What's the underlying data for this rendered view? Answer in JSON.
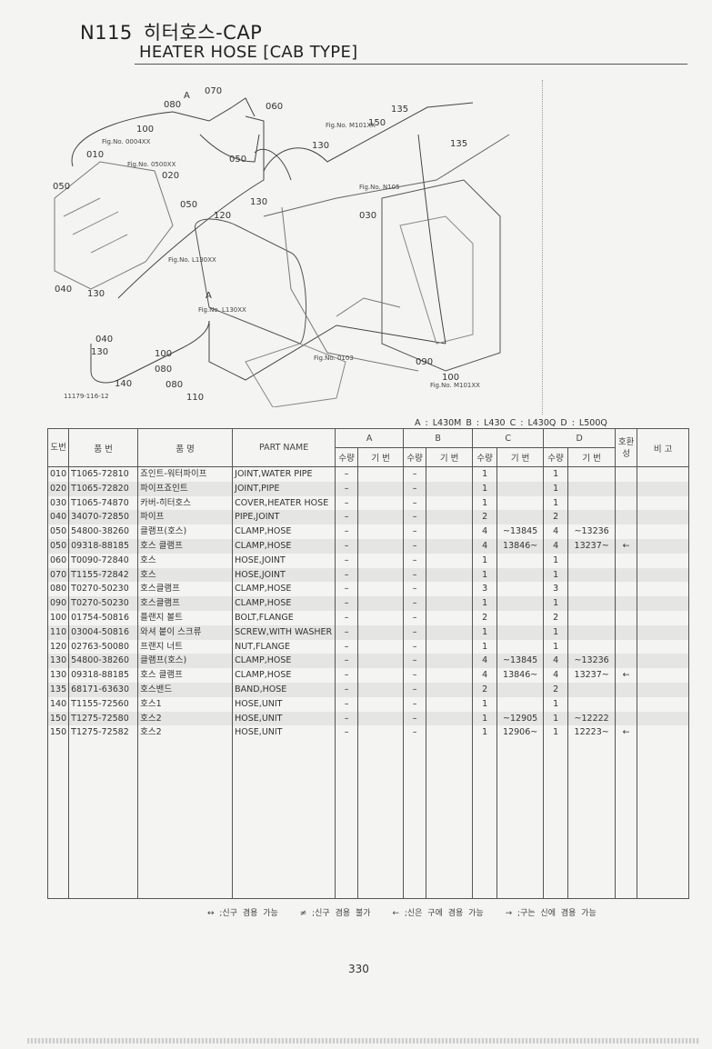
{
  "header": {
    "code": "N115",
    "title_ko": "히터호스-CAP",
    "title_en": "HEATER HOSE [CAB TYPE]"
  },
  "diagram": {
    "callouts": [
      "080",
      "A",
      "070",
      "060",
      "100",
      "010",
      "050",
      "050",
      "020",
      "050",
      "150",
      "135",
      "135",
      "130",
      "130",
      "030",
      "120",
      "A",
      "040",
      "130",
      "040",
      "130",
      "140",
      "100",
      "080",
      "080",
      "110",
      "090",
      "100"
    ],
    "fig_refs": [
      "Fig.No. 0004XX",
      "Fig.No. 0500XX",
      "Fig.No. M101XX",
      "Fig.No. N105",
      "Fig.No. L130XX",
      "Fig.No. L130XX",
      "Fig.No. 0103",
      "Fig.No. M101XX"
    ],
    "drawing_no": "11179-116-12"
  },
  "models_legend": "A : L430M   B : L430   C : L430Q   D : L500Q",
  "table": {
    "headers": {
      "ref": "도번",
      "part_no": "품 번",
      "name_ko": "품 명",
      "part_name": "PART NAME",
      "groups": [
        "A",
        "B",
        "C",
        "D"
      ],
      "qty": "수량",
      "serial": "기 번",
      "interchange": "호환성",
      "remarks": "비 고"
    },
    "rows": [
      {
        "ref": "010",
        "part_no": "T1065-72810",
        "name_ko": "죠인트-워터파이프",
        "part_name": "JOINT,WATER PIPE",
        "a_qty": "–",
        "a_sn": "",
        "b_qty": "–",
        "b_sn": "",
        "c_qty": "1",
        "c_sn": "",
        "d_qty": "1",
        "d_sn": "",
        "ic": "",
        "shade": false
      },
      {
        "ref": "020",
        "part_no": "T1065-72820",
        "name_ko": "파이프죠인트",
        "part_name": "JOINT,PIPE",
        "a_qty": "–",
        "a_sn": "",
        "b_qty": "–",
        "b_sn": "",
        "c_qty": "1",
        "c_sn": "",
        "d_qty": "1",
        "d_sn": "",
        "ic": "",
        "shade": true
      },
      {
        "ref": "030",
        "part_no": "T1065-74870",
        "name_ko": "카버-히터호스",
        "part_name": "COVER,HEATER HOSE",
        "a_qty": "–",
        "a_sn": "",
        "b_qty": "–",
        "b_sn": "",
        "c_qty": "1",
        "c_sn": "",
        "d_qty": "1",
        "d_sn": "",
        "ic": "",
        "shade": false
      },
      {
        "ref": "040",
        "part_no": "34070-72850",
        "name_ko": "파이프",
        "part_name": "PIPE,JOINT",
        "a_qty": "–",
        "a_sn": "",
        "b_qty": "–",
        "b_sn": "",
        "c_qty": "2",
        "c_sn": "",
        "d_qty": "2",
        "d_sn": "",
        "ic": "",
        "shade": true
      },
      {
        "ref": "050",
        "part_no": "54800-38260",
        "name_ko": "클램프(호스)",
        "part_name": "CLAMP,HOSE",
        "a_qty": "–",
        "a_sn": "",
        "b_qty": "–",
        "b_sn": "",
        "c_qty": "4",
        "c_sn": "~13845",
        "d_qty": "4",
        "d_sn": "~13236",
        "ic": "",
        "shade": false
      },
      {
        "ref": "050",
        "part_no": "09318-88185",
        "name_ko": "호스 클램프",
        "part_name": "CLAMP,HOSE",
        "a_qty": "–",
        "a_sn": "",
        "b_qty": "–",
        "b_sn": "",
        "c_qty": "4",
        "c_sn": "13846~",
        "d_qty": "4",
        "d_sn": "13237~",
        "ic": "←",
        "shade": true
      },
      {
        "ref": "060",
        "part_no": "T0090-72840",
        "name_ko": "호스",
        "part_name": "HOSE,JOINT",
        "a_qty": "–",
        "a_sn": "",
        "b_qty": "–",
        "b_sn": "",
        "c_qty": "1",
        "c_sn": "",
        "d_qty": "1",
        "d_sn": "",
        "ic": "",
        "shade": false
      },
      {
        "ref": "070",
        "part_no": "T1155-72842",
        "name_ko": "호스",
        "part_name": "HOSE,JOINT",
        "a_qty": "–",
        "a_sn": "",
        "b_qty": "–",
        "b_sn": "",
        "c_qty": "1",
        "c_sn": "",
        "d_qty": "1",
        "d_sn": "",
        "ic": "",
        "shade": true
      },
      {
        "ref": "080",
        "part_no": "T0270-50230",
        "name_ko": "호스클램프",
        "part_name": "CLAMP,HOSE",
        "a_qty": "–",
        "a_sn": "",
        "b_qty": "–",
        "b_sn": "",
        "c_qty": "3",
        "c_sn": "",
        "d_qty": "3",
        "d_sn": "",
        "ic": "",
        "shade": false
      },
      {
        "ref": "090",
        "part_no": "T0270-50230",
        "name_ko": "호스클램프",
        "part_name": "CLAMP,HOSE",
        "a_qty": "–",
        "a_sn": "",
        "b_qty": "–",
        "b_sn": "",
        "c_qty": "1",
        "c_sn": "",
        "d_qty": "1",
        "d_sn": "",
        "ic": "",
        "shade": true
      },
      {
        "ref": "100",
        "part_no": "01754-50816",
        "name_ko": "플랜지 볼트",
        "part_name": "BOLT,FLANGE",
        "a_qty": "–",
        "a_sn": "",
        "b_qty": "–",
        "b_sn": "",
        "c_qty": "2",
        "c_sn": "",
        "d_qty": "2",
        "d_sn": "",
        "ic": "",
        "shade": false
      },
      {
        "ref": "110",
        "part_no": "03004-50816",
        "name_ko": "와셔 붙이 스크류",
        "part_name": "SCREW,WITH WASHER",
        "a_qty": "–",
        "a_sn": "",
        "b_qty": "–",
        "b_sn": "",
        "c_qty": "1",
        "c_sn": "",
        "d_qty": "1",
        "d_sn": "",
        "ic": "",
        "shade": true
      },
      {
        "ref": "120",
        "part_no": "02763-50080",
        "name_ko": "프랜지 너트",
        "part_name": "NUT,FLANGE",
        "a_qty": "–",
        "a_sn": "",
        "b_qty": "–",
        "b_sn": "",
        "c_qty": "1",
        "c_sn": "",
        "d_qty": "1",
        "d_sn": "",
        "ic": "",
        "shade": false
      },
      {
        "ref": "130",
        "part_no": "54800-38260",
        "name_ko": "클램프(호스)",
        "part_name": "CLAMP,HOSE",
        "a_qty": "–",
        "a_sn": "",
        "b_qty": "–",
        "b_sn": "",
        "c_qty": "4",
        "c_sn": "~13845",
        "d_qty": "4",
        "d_sn": "~13236",
        "ic": "",
        "shade": true
      },
      {
        "ref": "130",
        "part_no": "09318-88185",
        "name_ko": "호스 클램프",
        "part_name": "CLAMP,HOSE",
        "a_qty": "–",
        "a_sn": "",
        "b_qty": "–",
        "b_sn": "",
        "c_qty": "4",
        "c_sn": "13846~",
        "d_qty": "4",
        "d_sn": "13237~",
        "ic": "←",
        "shade": false
      },
      {
        "ref": "135",
        "part_no": "68171-63630",
        "name_ko": "호스밴드",
        "part_name": "BAND,HOSE",
        "a_qty": "–",
        "a_sn": "",
        "b_qty": "–",
        "b_sn": "",
        "c_qty": "2",
        "c_sn": "",
        "d_qty": "2",
        "d_sn": "",
        "ic": "",
        "shade": true
      },
      {
        "ref": "140",
        "part_no": "T1155-72560",
        "name_ko": "호스1",
        "part_name": "HOSE,UNIT",
        "a_qty": "–",
        "a_sn": "",
        "b_qty": "–",
        "b_sn": "",
        "c_qty": "1",
        "c_sn": "",
        "d_qty": "1",
        "d_sn": "",
        "ic": "",
        "shade": false
      },
      {
        "ref": "150",
        "part_no": "T1275-72580",
        "name_ko": "호스2",
        "part_name": "HOSE,UNIT",
        "a_qty": "–",
        "a_sn": "",
        "b_qty": "–",
        "b_sn": "",
        "c_qty": "1",
        "c_sn": "~12905",
        "d_qty": "1",
        "d_sn": "~12222",
        "ic": "",
        "shade": true
      },
      {
        "ref": "150",
        "part_no": "T1275-72582",
        "name_ko": "호스2",
        "part_name": "HOSE,UNIT",
        "a_qty": "–",
        "a_sn": "",
        "b_qty": "–",
        "b_sn": "",
        "c_qty": "1",
        "c_sn": "12906~",
        "d_qty": "1",
        "d_sn": "12223~",
        "ic": "←",
        "shade": false
      }
    ]
  },
  "footer": {
    "legend": [
      "↔ ;신구 겸용 가능",
      "≠ ;신구 겸용 불가",
      "← ;신은 구에 겸용 가능",
      "→ ;구는 신에 겸용 가능"
    ],
    "page_number": "330"
  }
}
